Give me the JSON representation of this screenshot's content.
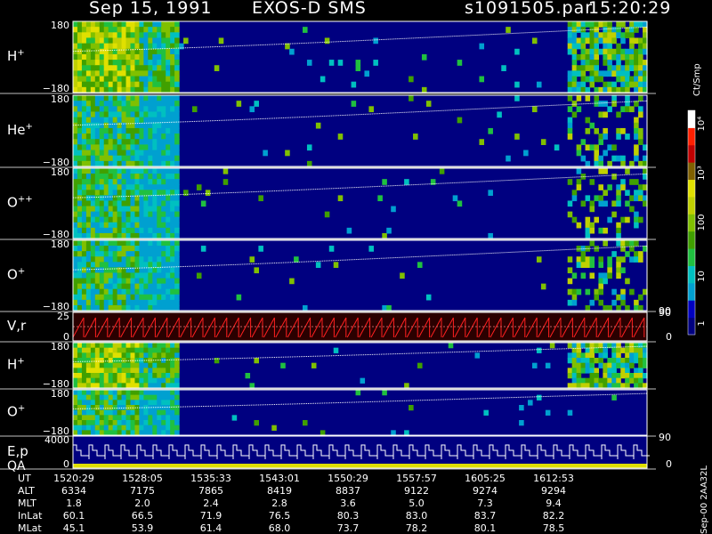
{
  "header": {
    "date": "Sep 15, 1991",
    "instrument": "EXOS-D SMS",
    "file": "s1091505.par",
    "time": "15:20:29"
  },
  "colorbar": {
    "unit": "Ct/Smp",
    "labels": [
      "10⁴",
      "10³",
      "100",
      "10",
      "1"
    ]
  },
  "side_labels": {
    "version": "Sep-00 2AA32L"
  },
  "chart_data": {
    "type": "heatmap",
    "colormap": [
      "#000080",
      "#0000c0",
      "#00a0d0",
      "#00c0c0",
      "#20c040",
      "#40a000",
      "#80c000",
      "#c0d000",
      "#e0e000",
      "#806000",
      "#c00000",
      "#ff2000",
      "#ffffff"
    ],
    "panels": [
      {
        "label": "H",
        "charge": "+",
        "ymax": "180",
        "ymin": "−180"
      },
      {
        "label": "He",
        "charge": "+",
        "ymax": "180",
        "ymin": "−180"
      },
      {
        "label": "O",
        "charge": "++",
        "ymax": "180",
        "ymin": "−180"
      },
      {
        "label": "O",
        "charge": "+",
        "ymax": "180",
        "ymin": "−180",
        "right_tick": "90"
      },
      {
        "label": "V,r",
        "charge": "",
        "ymax": "25",
        "ymin": "0",
        "right_top": "90",
        "right_bot": "0"
      },
      {
        "label": "H",
        "charge": "+",
        "ymax": "180",
        "ymin": "−180"
      },
      {
        "label": "O",
        "charge": "+",
        "ymax": "180",
        "ymin": "−180",
        "right_tick": "90"
      },
      {
        "label": "E,p",
        "label2": "QA",
        "ymax": "4000",
        "ymin": "0",
        "right_bot": "0"
      }
    ],
    "table": {
      "row_labels": [
        "UT",
        "ALT",
        "MLT",
        "InLat",
        "MLat"
      ],
      "columns": [
        [
          "1520:29",
          "6334",
          "1.8",
          "60.1",
          "45.1"
        ],
        [
          "1528:05",
          "7175",
          "2.0",
          "66.5",
          "53.9"
        ],
        [
          "1535:33",
          "7865",
          "2.4",
          "71.9",
          "61.4"
        ],
        [
          "1543:01",
          "8419",
          "2.8",
          "76.5",
          "68.0"
        ],
        [
          "1550:29",
          "8837",
          "3.6",
          "80.3",
          "73.7"
        ],
        [
          "1557:57",
          "9122",
          "5.0",
          "83.0",
          "78.2"
        ],
        [
          "1605:25",
          "9274",
          "7.3",
          "83.7",
          "80.1"
        ],
        [
          "1612:53",
          "9294",
          "9.4",
          "82.2",
          "78.5"
        ]
      ]
    }
  }
}
